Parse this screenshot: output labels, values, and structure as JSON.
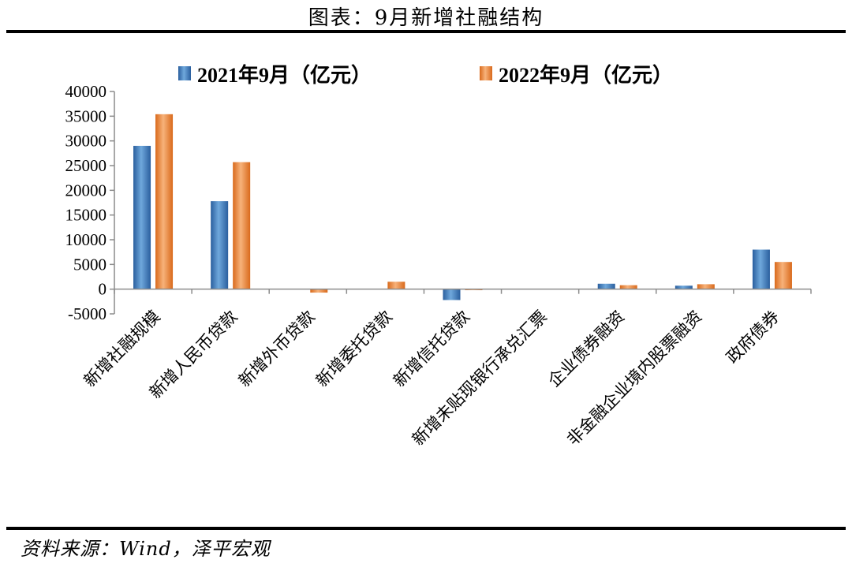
{
  "page": {
    "title": "图表：9月新增社融结构",
    "source": "资料来源：Wind，泽平宏观"
  },
  "colors": {
    "series1": "#3f7fc4",
    "series2": "#f2883a",
    "axis": "#8c8c8c"
  },
  "chart_data": {
    "type": "bar",
    "title": "",
    "xlabel": "",
    "ylabel": "",
    "ylim": [
      -5000,
      40000
    ],
    "yticks": [
      40000,
      35000,
      30000,
      25000,
      20000,
      15000,
      10000,
      5000,
      0,
      -5000
    ],
    "grid": false,
    "legend_position": "top",
    "categories": [
      "新增社融规模",
      "新增人民币贷款",
      "新增外币贷款",
      "新增委托贷款",
      "新增信托贷款",
      "新增未贴现银行承兑汇票",
      "企业债券融资",
      "非金融企业境内股票融资",
      "政府债券"
    ],
    "series": [
      {
        "name": "2021年9月（亿元）",
        "values": [
          29000,
          17800,
          0,
          0,
          -2200,
          0,
          1100,
          700,
          8000
        ]
      },
      {
        "name": "2022年9月（亿元）",
        "values": [
          35400,
          25700,
          -700,
          1500,
          -200,
          0,
          800,
          1000,
          5500
        ]
      }
    ]
  }
}
